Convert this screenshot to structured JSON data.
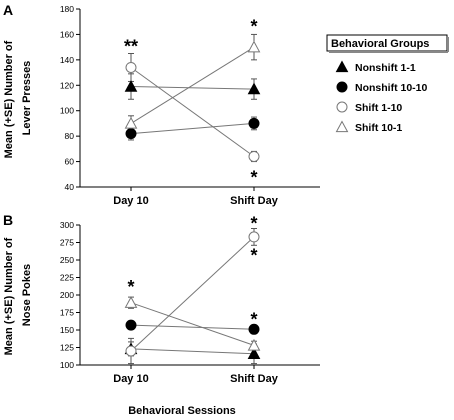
{
  "figure": {
    "xlabel_bottom": "Behavioral Sessions"
  },
  "legend": {
    "title": "Behavioral Groups",
    "entries": [
      {
        "name": "Nonshift 1-1",
        "marker": "triangle-filled"
      },
      {
        "name": "Nonshift 10-10",
        "marker": "circle-filled"
      },
      {
        "name": "Shift 1-10",
        "marker": "circle-open"
      },
      {
        "name": "Shift 10-1",
        "marker": "triangle-open"
      }
    ]
  },
  "chart_data": [
    {
      "panel": "A",
      "type": "line",
      "ylabel": [
        "Mean (+SE) Number of",
        "Lever Presses"
      ],
      "categories": [
        "Day 10",
        "Shift Day"
      ],
      "ylim": [
        40,
        180
      ],
      "yticks": [
        40,
        60,
        80,
        100,
        120,
        140,
        160,
        180
      ],
      "series": [
        {
          "name": "Nonshift 1-1",
          "marker": "triangle-filled",
          "values": [
            119,
            117
          ],
          "se": [
            10,
            8
          ]
        },
        {
          "name": "Nonshift 10-10",
          "marker": "circle-filled",
          "values": [
            82,
            90
          ],
          "se": [
            5,
            5
          ]
        },
        {
          "name": "Shift 1-10",
          "marker": "circle-open",
          "values": [
            134,
            64
          ],
          "se": [
            11,
            4
          ]
        },
        {
          "name": "Shift 10-1",
          "marker": "triangle-open",
          "values": [
            90,
            150
          ],
          "se": [
            6,
            10
          ]
        }
      ],
      "annotations": [
        {
          "text": "**",
          "category": "Day 10",
          "y": 152
        },
        {
          "text": "*",
          "category": "Shift Day",
          "y": 168
        },
        {
          "text": "*",
          "category": "Shift Day",
          "y": 49
        }
      ]
    },
    {
      "panel": "B",
      "type": "line",
      "ylabel": [
        "Mean (+SE) Number of",
        "Nose Pokes"
      ],
      "categories": [
        "Day 10",
        "Shift Day"
      ],
      "ylim": [
        100,
        300
      ],
      "yticks": [
        100,
        125,
        150,
        175,
        200,
        225,
        250,
        275,
        300
      ],
      "series": [
        {
          "name": "Nonshift 1-1",
          "marker": "triangle-filled",
          "values": [
            123,
            116
          ],
          "se": [
            10,
            14
          ]
        },
        {
          "name": "Nonshift 10-10",
          "marker": "circle-filled",
          "values": [
            157,
            151
          ],
          "se": [
            4,
            4
          ]
        },
        {
          "name": "Shift 1-10",
          "marker": "circle-open",
          "values": [
            120,
            283
          ],
          "se": [
            18,
            12
          ]
        },
        {
          "name": "Shift 10-1",
          "marker": "triangle-open",
          "values": [
            189,
            128
          ],
          "se": [
            8,
            6
          ]
        }
      ],
      "annotations": [
        {
          "text": "*",
          "category": "Day 10",
          "y": 214
        },
        {
          "text": "*",
          "category": "Shift Day",
          "y": 305
        },
        {
          "text": "*",
          "category": "Shift Day",
          "y": 259
        },
        {
          "text": "*",
          "category": "Shift Day",
          "y": 168
        }
      ]
    }
  ]
}
